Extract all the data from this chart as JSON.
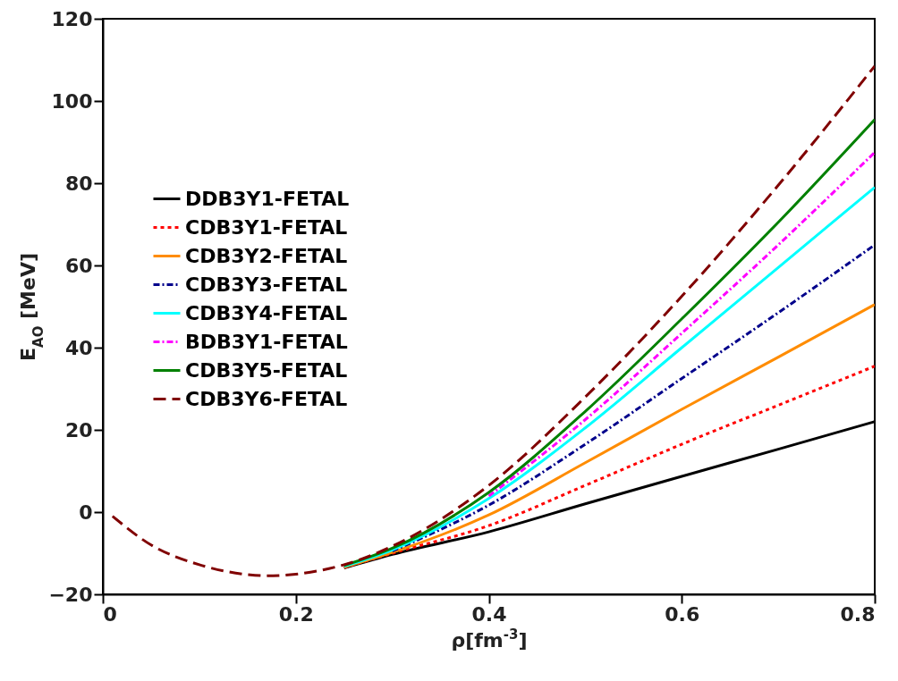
{
  "chart_data": {
    "type": "line",
    "xlabel": "ρ[fm$^{-3}$]",
    "ylabel": "E$_{AO}$ [MeV]",
    "x": [
      0.01,
      0.05,
      0.1,
      0.15,
      0.17,
      0.2,
      0.25,
      0.3,
      0.4,
      0.5,
      0.6,
      0.7,
      0.8
    ],
    "xlim": [
      0,
      0.8
    ],
    "xticks": [
      0,
      0.2,
      0.4,
      0.6,
      0.8
    ],
    "ylim": [
      -20,
      120
    ],
    "yticks": [
      -20,
      0,
      20,
      40,
      60,
      80,
      100,
      120
    ],
    "grid": false,
    "legend": "left",
    "marker": "none",
    "series": [
      {
        "name": "DDB3Y1-FETAL",
        "color": "#000000",
        "line_style": "solid",
        "values": [
          null,
          null,
          null,
          null,
          null,
          null,
          -13.6,
          -10.3,
          -4.8,
          2,
          8.7,
          15.3,
          22
        ]
      },
      {
        "name": "CDB3Y1-FETAL",
        "color": "#ff0000",
        "line_style": "dotted",
        "values": [
          null,
          null,
          null,
          null,
          null,
          null,
          -13.5,
          -10,
          -3.3,
          6.5,
          16.5,
          26,
          35.5
        ]
      },
      {
        "name": "CDB3Y2-FETAL",
        "color": "#ff8c00",
        "line_style": "solid",
        "values": [
          null,
          null,
          null,
          null,
          null,
          null,
          -13.4,
          -9.8,
          -0.7,
          12,
          25,
          37.7,
          50.5
        ]
      },
      {
        "name": "CDB3Y3-FETAL",
        "color": "#00008b",
        "line_style": "dashdot",
        "values": [
          null,
          null,
          null,
          null,
          null,
          null,
          null,
          -9.5,
          1.7,
          16.5,
          32.5,
          48.5,
          65
        ]
      },
      {
        "name": "CDB3Y4-FETAL",
        "color": "#00ffff",
        "line_style": "solid",
        "values": [
          null,
          null,
          null,
          null,
          null,
          null,
          -13.2,
          -9.2,
          3.3,
          20.5,
          40,
          59.5,
          79
        ]
      },
      {
        "name": "BDB3Y1-FETAL",
        "color": "#ff00ff",
        "line_style": "dashdot",
        "values": [
          null,
          null,
          null,
          null,
          null,
          null,
          null,
          null,
          3.9,
          22.5,
          43.5,
          65,
          87.5
        ]
      },
      {
        "name": "CDB3Y5-FETAL",
        "color": "#008000",
        "line_style": "solid",
        "values": [
          null,
          null,
          null,
          null,
          null,
          null,
          -13,
          -8.8,
          4.8,
          24.5,
          47,
          70.5,
          95.5
        ]
      },
      {
        "name": "CDB3Y6-FETAL",
        "color": "#800000",
        "line_style": "dashed",
        "values": [
          -1,
          -8,
          -12.8,
          -15.2,
          -15.5,
          -15.1,
          -12.8,
          -8.3,
          6.5,
          28,
          52.5,
          79.5,
          108.5
        ]
      }
    ]
  }
}
